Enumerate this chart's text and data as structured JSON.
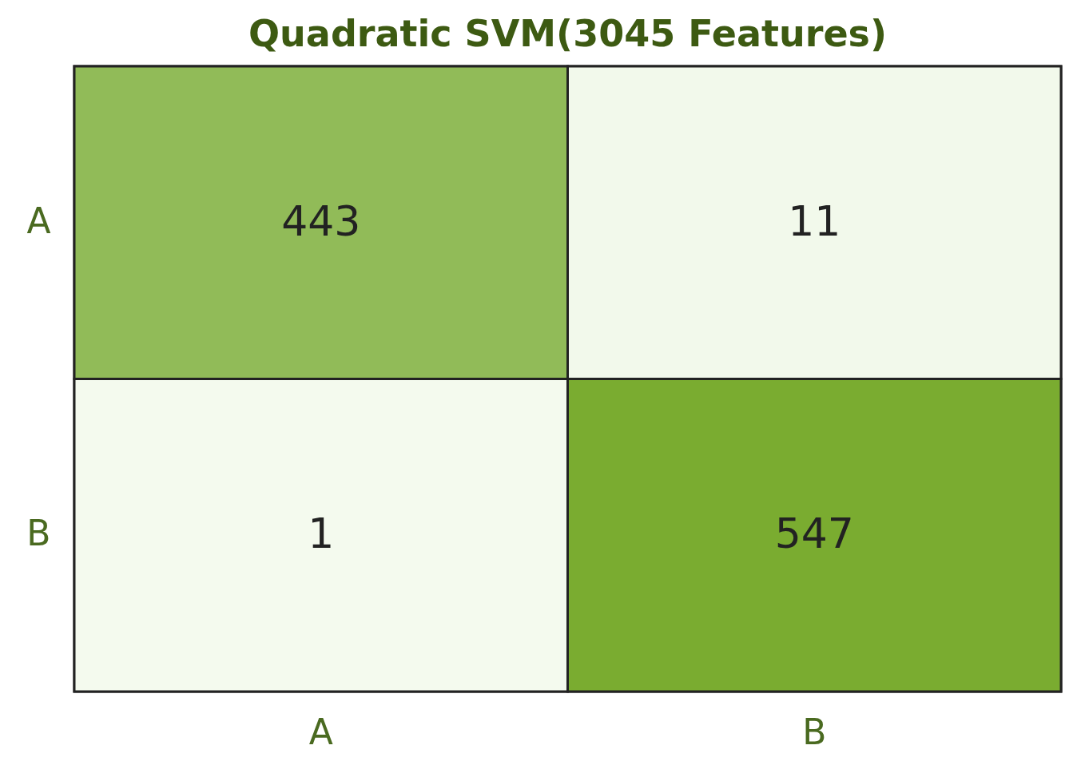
{
  "chart_data": {
    "type": "heatmap",
    "title": "Quadratic SVM(3045 Features)",
    "categories": [
      "A",
      "B"
    ],
    "y_categories": [
      "A",
      "B"
    ],
    "cells": [
      [
        443,
        11
      ],
      [
        1,
        547
      ]
    ],
    "data_labels": true
  }
}
